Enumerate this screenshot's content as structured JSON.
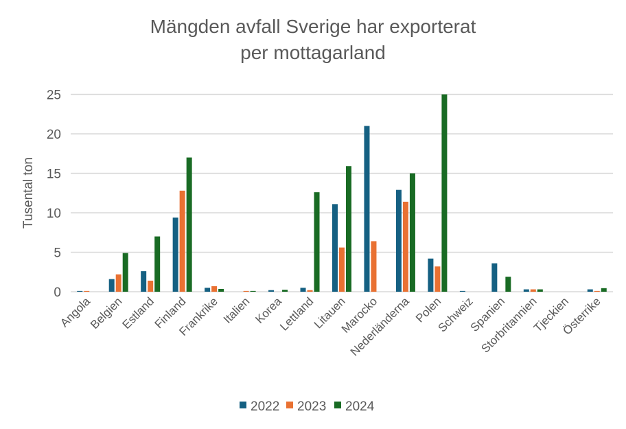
{
  "chart_data": {
    "type": "bar",
    "title": [
      "Mängden avfall Sverige har exporterat",
      "per mottagarland"
    ],
    "xlabel": "",
    "ylabel": "Tusental ton",
    "ylim": [
      0,
      25
    ],
    "yticks": [
      "0",
      "5",
      "10",
      "15",
      "20",
      "25"
    ],
    "grid": true,
    "legend_position": "bottom",
    "categories": [
      "Angola",
      "Belgien",
      "Estland",
      "Finland",
      "Frankrike",
      "Italien",
      "Korea",
      "Lettland",
      "Litauen",
      "Marocko",
      "Nederländerna",
      "Polen",
      "Schweiz",
      "Spanien",
      "Storbritannien",
      "Tjeckien",
      "Österrike"
    ],
    "series": [
      {
        "name": "2022",
        "color": "#156082",
        "values": [
          0.1,
          1.6,
          2.6,
          9.4,
          0.5,
          0,
          0.2,
          0.5,
          11.1,
          21.0,
          12.9,
          4.2,
          0.1,
          3.6,
          0.3,
          0,
          0.3
        ]
      },
      {
        "name": "2023",
        "color": "#E97132",
        "values": [
          0.1,
          2.2,
          1.4,
          12.8,
          0.7,
          0.1,
          0,
          0.2,
          5.6,
          6.4,
          11.4,
          3.2,
          0,
          0,
          0.3,
          0,
          0.1
        ]
      },
      {
        "name": "2024",
        "color": "#196B24",
        "values": [
          0,
          4.9,
          7.0,
          17.0,
          0.35,
          0.1,
          0.25,
          12.6,
          15.9,
          0,
          15.0,
          25.0,
          0,
          1.9,
          0.3,
          0,
          0.45
        ]
      }
    ]
  }
}
